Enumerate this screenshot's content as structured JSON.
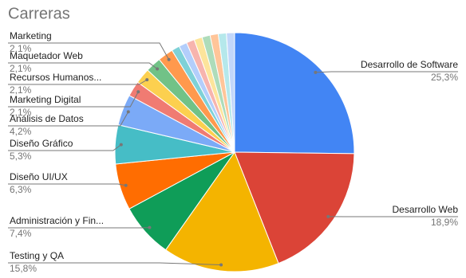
{
  "chart_data": {
    "type": "pie",
    "title": "Carreras",
    "categories": [
      "Desarrollo de Software",
      "Desarrollo Web",
      "Testing y QA",
      "Administración y Fin...",
      "Diseño UI/UX",
      "Diseño Gráfico",
      "Análisis de Datos",
      "Marketing Digital",
      "Recursos Humanos...",
      "Maquetador Web",
      "Marketing",
      null,
      null,
      null,
      null,
      null,
      null,
      null,
      null
    ],
    "values": [
      25.3,
      18.9,
      15.8,
      7.4,
      6.3,
      5.3,
      4.2,
      2.1,
      2.1,
      2.1,
      2.1,
      1.1,
      1.1,
      1.1,
      1.1,
      1.1,
      1.1,
      1.1,
      1.1
    ],
    "value_labels": [
      "25,3%",
      "18,9%",
      "15,8%",
      "7,4%",
      "6,3%",
      "5,3%",
      "4,2%",
      "2,1%",
      "2,1%",
      "2,1%",
      "2,1%",
      null,
      null,
      null,
      null,
      null,
      null,
      null,
      null
    ],
    "colors": [
      "#4285f4",
      "#db4437",
      "#f4b400",
      "#0f9d58",
      "#ff6d01",
      "#46bdc6",
      "#7baaf7",
      "#f07b72",
      "#fcd04f",
      "#71c287",
      "#ff994d",
      "#7ed1d7",
      "#b3cefb",
      "#f7b4ae",
      "#fde49b",
      "#aedcba",
      "#ffc599",
      "#b5e8eb",
      "#c2d7fa"
    ]
  }
}
